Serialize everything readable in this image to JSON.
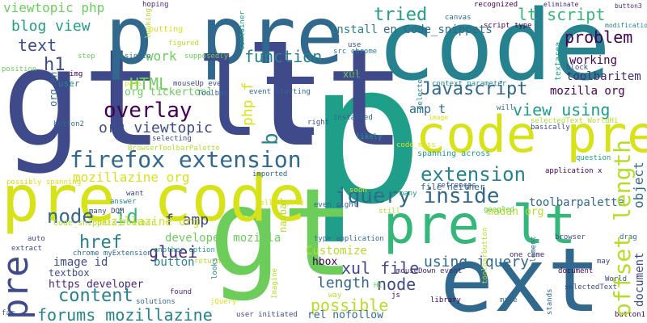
{
  "words": [
    {
      "text": "p",
      "color": "#1f9e89"
    },
    {
      "text": "gt lt",
      "color": "#3e4a89"
    },
    {
      "text": "code",
      "color": "#26828e"
    },
    {
      "text": "gt",
      "color": "#6ccd5a"
    },
    {
      "text": "pre code",
      "color": "#d8e219"
    },
    {
      "text": "ext",
      "color": "#31688e"
    },
    {
      "text": "pre",
      "color": "#3e4a89"
    },
    {
      "text": "p pre",
      "color": "#31688e"
    },
    {
      "text": "code pre",
      "color": "#d8e219"
    },
    {
      "text": "pre lt",
      "color": "#35b779"
    },
    {
      "text": "lt",
      "color": "#3e4a89"
    },
    {
      "text": "firefox extension",
      "color": "#31688e"
    },
    {
      "text": "offset length",
      "color": "#b5de2b"
    },
    {
      "text": "jquery inside",
      "color": "#31688e"
    },
    {
      "text": "extension",
      "color": "#26828e"
    },
    {
      "text": "overlay",
      "color": "#440154"
    },
    {
      "text": "Javascript",
      "color": "#31688e"
    },
    {
      "text": "node",
      "color": "#31688e"
    },
    {
      "text": "id",
      "color": "#35b779"
    },
    {
      "text": "forums mozillazine",
      "color": "#26828e"
    },
    {
      "text": "content",
      "color": "#26828e"
    },
    {
      "text": "problem",
      "color": "#440154"
    },
    {
      "text": "tried",
      "color": "#1f9e89"
    },
    {
      "text": "lt script",
      "color": "#35b779"
    },
    {
      "text": "function",
      "color": "#26828e"
    },
    {
      "text": "blog view",
      "color": "#1f9e89"
    },
    {
      "text": "text",
      "color": "#3e4a89"
    },
    {
      "text": "h1",
      "color": "#3e4a89"
    },
    {
      "text": "work",
      "color": "#6ccd5a"
    },
    {
      "text": "HTML",
      "color": "#6ccd5a"
    },
    {
      "text": "org viewtopic",
      "color": "#3e4a89"
    },
    {
      "text": "view using",
      "color": "#1f9e89"
    },
    {
      "text": "mozillazine org",
      "color": "#d8e219"
    },
    {
      "text": "href",
      "color": "#26828e"
    },
    {
      "text": "gluei",
      "color": "#482878"
    },
    {
      "text": "xul file",
      "color": "#3e4a89"
    },
    {
      "text": "using jquery",
      "color": "#31688e"
    },
    {
      "text": "length",
      "color": "#31688e"
    },
    {
      "text": "node",
      "color": "#3e4a89"
    },
    {
      "text": "possible",
      "color": "#b5de2b"
    },
    {
      "text": "f amp",
      "color": "#3e4a89"
    },
    {
      "text": "viewtopic php",
      "color": "#6ccd5a"
    },
    {
      "text": "b",
      "color": "#26828e"
    },
    {
      "text": "php f",
      "color": "#d8e219"
    },
    {
      "text": "object",
      "color": "#31688e"
    },
    {
      "text": "document",
      "color": "#3e4a89"
    },
    {
      "text": "toolbarpalette",
      "color": "#31688e"
    },
    {
      "text": "mozilla org",
      "color": "#440154"
    },
    {
      "text": "toolbaritem",
      "color": "#482878"
    },
    {
      "text": "working",
      "color": "#440154"
    },
    {
      "text": "amp t",
      "color": "#31688e"
    },
    {
      "text": "developer mozilla",
      "color": "#6ccd5a"
    },
    {
      "text": "image id",
      "color": "#3e4a89"
    },
    {
      "text": "button",
      "color": "#26828e"
    },
    {
      "text": "https developer",
      "color": "#482878"
    },
    {
      "text": "Customize",
      "color": "#b5de2b"
    },
    {
      "text": "hbox",
      "color": "#440154"
    },
    {
      "text": "rel nofollow",
      "color": "#31688e"
    },
    {
      "text": "en Code_snippets",
      "color": "#31688e"
    },
    {
      "text": "install",
      "color": "#26828e"
    },
    {
      "text": "madan org",
      "color": "#b5de2b"
    },
    {
      "text": "org tickertool",
      "color": "#6ccd5a"
    },
    {
      "text": "textbox",
      "color": "#3e4a89"
    },
    {
      "text": "navbar",
      "color": "#b5de2b"
    },
    {
      "text": "mozillazine org",
      "color": "#d8e219"
    },
    {
      "text": "xul",
      "color": "#6ccd5a"
    },
    {
      "text": "org en",
      "color": "#31688e"
    },
    {
      "text": "user",
      "color": "#26828e"
    },
    {
      "text": "file neither",
      "color": "#31688e"
    },
    {
      "text": "spanning across",
      "color": "#1f9e89"
    },
    {
      "text": "putting",
      "color": "#d8e219"
    },
    {
      "text": "hoping",
      "color": "#482878"
    },
    {
      "text": "chrome myExtension",
      "color": "#31688e"
    },
    {
      "text": "another option",
      "color": "#1f9e89"
    },
    {
      "text": "Code_snippets Toolbar",
      "color": "#b5de2b"
    },
    {
      "text": "many DOM",
      "color": "#3e4a89"
    },
    {
      "text": "possibly spanning",
      "color": "#d8e219"
    },
    {
      "text": "BrowserToolbarPalette",
      "color": "#b5de2b"
    },
    {
      "text": "event starting",
      "color": "#31688e"
    },
    {
      "text": "mouseUp even",
      "color": "#3e4a89"
    },
    {
      "text": "selecting",
      "color": "#3e4a89"
    },
    {
      "text": "src chrome",
      "color": "#26828e"
    },
    {
      "text": "one came",
      "color": "#482878"
    },
    {
      "text": "type application",
      "color": "#31688e"
    },
    {
      "text": "mouseDown event",
      "color": "#482878"
    },
    {
      "text": "application x",
      "color": "#440154"
    },
    {
      "text": "question",
      "color": "#1f9e89"
    },
    {
      "text": "selectedText",
      "color": "#3e4a89"
    },
    {
      "text": "user initiated",
      "color": "#3e4a89"
    },
    {
      "text": "solutions",
      "color": "#31688e"
    },
    {
      "text": "library",
      "color": "#440154"
    },
    {
      "text": "selectedText WorldHi",
      "color": "#b5de2b"
    },
    {
      "text": "context parameter",
      "color": "#26828e"
    },
    {
      "text": "script type",
      "color": "#440154"
    },
    {
      "text": "canvas",
      "color": "#31688e"
    },
    {
      "text": "recognized",
      "color": "#440154"
    },
    {
      "text": "eliminate",
      "color": "#482878"
    },
    {
      "text": "button3",
      "color": "#482878"
    },
    {
      "text": "modification",
      "color": "#26828e"
    },
    {
      "text": "block",
      "color": "#3e4a89"
    },
    {
      "text": "will",
      "color": "#31688e"
    },
    {
      "text": "image",
      "color": "#d8e219"
    },
    {
      "text": "basically",
      "color": "#3e4a89"
    },
    {
      "text": "even right",
      "color": "#31688e"
    },
    {
      "text": "still",
      "color": "#b5de2b"
    },
    {
      "text": "across many",
      "color": "#1f9e89"
    },
    {
      "text": "refrences",
      "color": "#3e4a89"
    },
    {
      "text": "googled",
      "color": "#6ccd5a"
    },
    {
      "text": "Hello World",
      "color": "#d8e219"
    },
    {
      "text": "imported",
      "color": "#31688e"
    },
    {
      "text": "answer",
      "color": "#26828e"
    },
    {
      "text": "want",
      "color": "#3e4a89"
    },
    {
      "text": "found",
      "color": "#482878"
    },
    {
      "text": "return",
      "color": "#b5de2b"
    },
    {
      "text": "way",
      "color": "#b5de2b"
    },
    {
      "text": "js",
      "color": "#440154"
    },
    {
      "text": "Hi",
      "color": "#6ccd5a"
    },
    {
      "text": "document",
      "color": "#440154"
    },
    {
      "text": "World",
      "color": "#3e4a89"
    },
    {
      "text": "may",
      "color": "#3e4a89"
    },
    {
      "text": "drag",
      "color": "#31688e"
    },
    {
      "text": "browser",
      "color": "#3e4a89"
    },
    {
      "text": "make",
      "color": "#31688e"
    },
    {
      "text": "button1",
      "color": "#440154"
    },
    {
      "text": "stands",
      "color": "#31688e"
    },
    {
      "text": "element",
      "color": "#31688e"
    },
    {
      "text": "jQuery",
      "color": "#d8e219"
    },
    {
      "text": "Imagine",
      "color": "#b5de2b"
    },
    {
      "text": "far",
      "color": "#31688e"
    },
    {
      "text": "auto",
      "color": "#3e4a89"
    },
    {
      "text": "extract",
      "color": "#3e4a89"
    },
    {
      "text": "looks",
      "color": "#26828e"
    },
    {
      "text": "button2",
      "color": "#31688e"
    },
    {
      "text": "position",
      "color": "#6ccd5a"
    },
    {
      "text": "img",
      "color": "#440154"
    },
    {
      "text": "step",
      "color": "#6ccd5a"
    },
    {
      "text": "single",
      "color": "#31688e"
    },
    {
      "text": "supposedly",
      "color": "#6ccd5a"
    },
    {
      "text": "container",
      "color": "#1f9e89"
    },
    {
      "text": "figured",
      "color": "#b5de2b"
    },
    {
      "text": "looking",
      "color": "#b5de2b"
    },
    {
      "text": "pass",
      "color": "#d8e219"
    },
    {
      "text": "Toolbar",
      "color": "#31688e"
    },
    {
      "text": "use",
      "color": "#3e4a89"
    },
    {
      "text": "textarea",
      "color": "#1f9e89"
    },
    {
      "text": "one",
      "color": "#3e4a89"
    },
    {
      "text": "selected",
      "color": "#26828e"
    },
    {
      "text": "installed",
      "color": "#31688e"
    },
    {
      "text": "likely",
      "color": "#1f9e89"
    },
    {
      "text": "right",
      "color": "#3e4a89"
    },
    {
      "text": "toolbarbutton",
      "color": "#b5de2b"
    },
    {
      "text": "code_mess",
      "color": "#d8e219"
    },
    {
      "text": "soon",
      "color": "#d8e219"
    }
  ]
}
